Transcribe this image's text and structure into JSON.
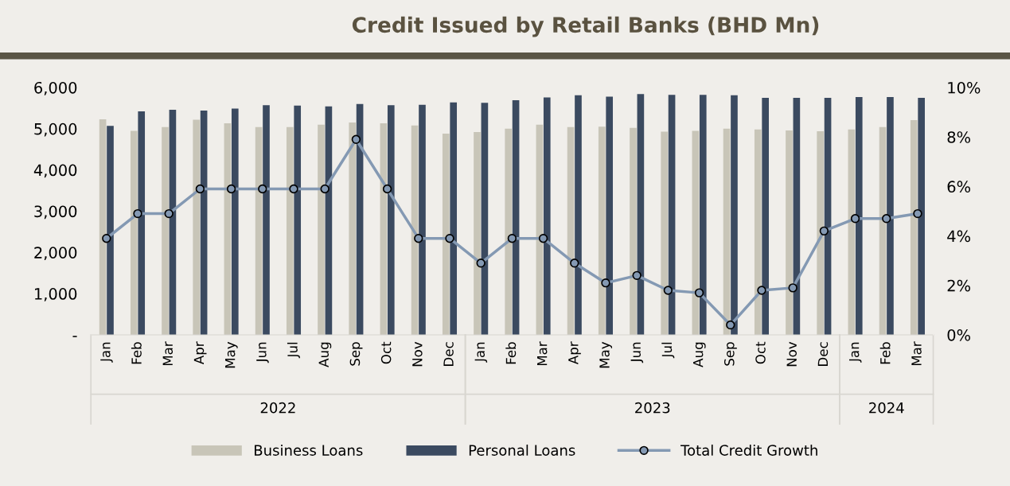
{
  "chart_data": {
    "type": "bar",
    "title": "Credit Issued by Retail Banks (BHD Mn)",
    "categories": [
      "Jan",
      "Feb",
      "Mar",
      "Apr",
      "May",
      "Jun",
      "Jul",
      "Aug",
      "Sep",
      "Oct",
      "Nov",
      "Dec",
      "Jan",
      "Feb",
      "Mar",
      "Apr",
      "May",
      "Jun",
      "Jul",
      "Aug",
      "Sep",
      "Oct",
      "Nov",
      "Dec",
      "Jan",
      "Feb",
      "Mar"
    ],
    "annotations": [
      "2022",
      "2023",
      "2024"
    ],
    "series": [
      {
        "name": "Business Loans",
        "color": "#c8c5b8",
        "values": [
          5230,
          4950,
          5040,
          5220,
          5130,
          5040,
          5040,
          5100,
          5150,
          5130,
          5080,
          4880,
          4920,
          5000,
          5100,
          5040,
          5050,
          5020,
          4930,
          4950,
          5000,
          4980,
          4960,
          4940,
          4980,
          5040,
          5210
        ]
      },
      {
        "name": "Personal Loans",
        "color": "#3b4a60",
        "values": [
          5070,
          5420,
          5460,
          5440,
          5490,
          5570,
          5560,
          5540,
          5600,
          5570,
          5580,
          5640,
          5630,
          5690,
          5760,
          5810,
          5780,
          5840,
          5820,
          5820,
          5810,
          5750,
          5750,
          5750,
          5770,
          5770,
          5750
        ]
      },
      {
        "name": "Total Credit Growth",
        "type": "line",
        "axis": "y2",
        "color": "#8499b3",
        "values": [
          3.9,
          4.9,
          4.9,
          5.9,
          5.9,
          5.9,
          5.9,
          5.9,
          7.9,
          5.9,
          3.9,
          3.9,
          2.9,
          3.9,
          3.9,
          2.9,
          2.1,
          2.4,
          1.8,
          1.7,
          0.4,
          1.8,
          1.9,
          4.2,
          4.7,
          4.7,
          4.9
        ]
      }
    ],
    "ylim": [
      0,
      6000
    ],
    "yticks": [
      {
        "value": 0,
        "label": "-"
      },
      {
        "value": 1000,
        "label": "1,000"
      },
      {
        "value": 2000,
        "label": "2,000"
      },
      {
        "value": 3000,
        "label": "3,000"
      },
      {
        "value": 4000,
        "label": "4,000"
      },
      {
        "value": 5000,
        "label": "5,000"
      },
      {
        "value": 6000,
        "label": "6,000"
      }
    ],
    "y2lim": [
      0,
      10
    ],
    "y2ticks": [
      {
        "value": 0,
        "label": "0%"
      },
      {
        "value": 2,
        "label": "2%"
      },
      {
        "value": 4,
        "label": "4%"
      },
      {
        "value": 6,
        "label": "6%"
      },
      {
        "value": 8,
        "label": "8%"
      },
      {
        "value": 10,
        "label": "10%"
      }
    ],
    "marker": "circle",
    "line_style": "solid",
    "grid": false,
    "legend": "bottom"
  }
}
